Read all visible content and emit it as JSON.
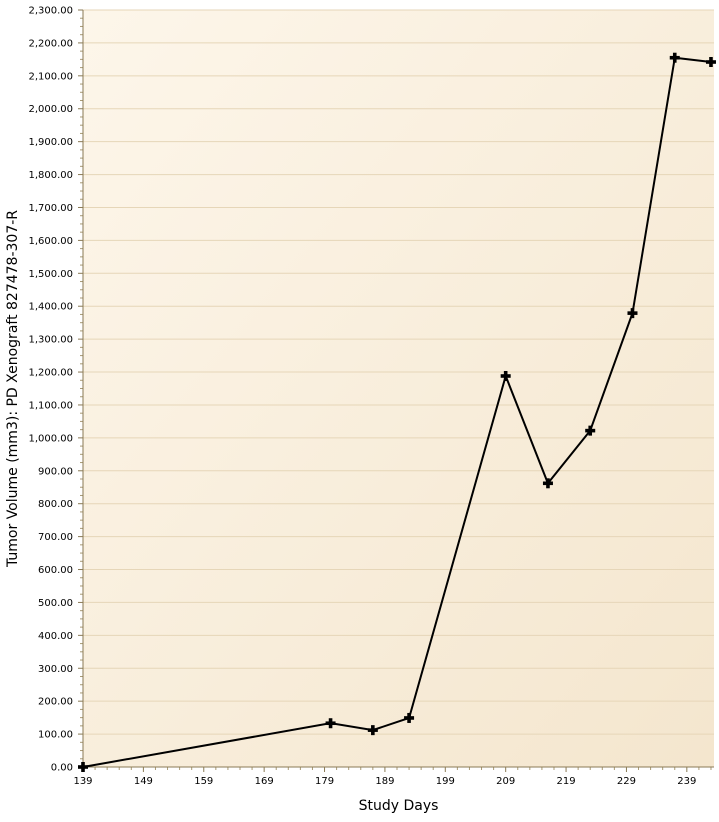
{
  "chart_data": {
    "type": "line",
    "title": "",
    "xlabel": "Study Days",
    "ylabel": "Tumor Volume (mm3): PD Xenograft 827478-307-R",
    "xlim": [
      139,
      243.5
    ],
    "ylim": [
      0,
      2300
    ],
    "x_ticks": [
      139,
      149,
      159,
      169,
      179,
      189,
      199,
      209,
      219,
      229,
      239
    ],
    "y_ticks": [
      0,
      100,
      200,
      300,
      400,
      500,
      600,
      700,
      800,
      900,
      1000,
      1100,
      1200,
      1300,
      1400,
      1500,
      1600,
      1700,
      1800,
      1900,
      2000,
      2100,
      2200,
      2300
    ],
    "y_tick_labels": [
      "0.00",
      "100.00",
      "200.00",
      "300.00",
      "400.00",
      "500.00",
      "600.00",
      "700.00",
      "800.00",
      "900.00",
      "1,000.00",
      "1,100.00",
      "1,200.00",
      "1,300.00",
      "1,400.00",
      "1,500.00",
      "1,600.00",
      "1,700.00",
      "1,800.00",
      "1,900.00",
      "2,000.00",
      "2,100.00",
      "2,200.00",
      "2,300.00"
    ],
    "grid": true,
    "series": [
      {
        "x": [
          139,
          180,
          187,
          193,
          209,
          216,
          223,
          230,
          237,
          243
        ],
        "y": [
          0,
          133,
          112,
          149,
          1188,
          862,
          1022,
          1379,
          2155,
          2142
        ],
        "color": "#000000",
        "marker": "plus"
      }
    ]
  }
}
